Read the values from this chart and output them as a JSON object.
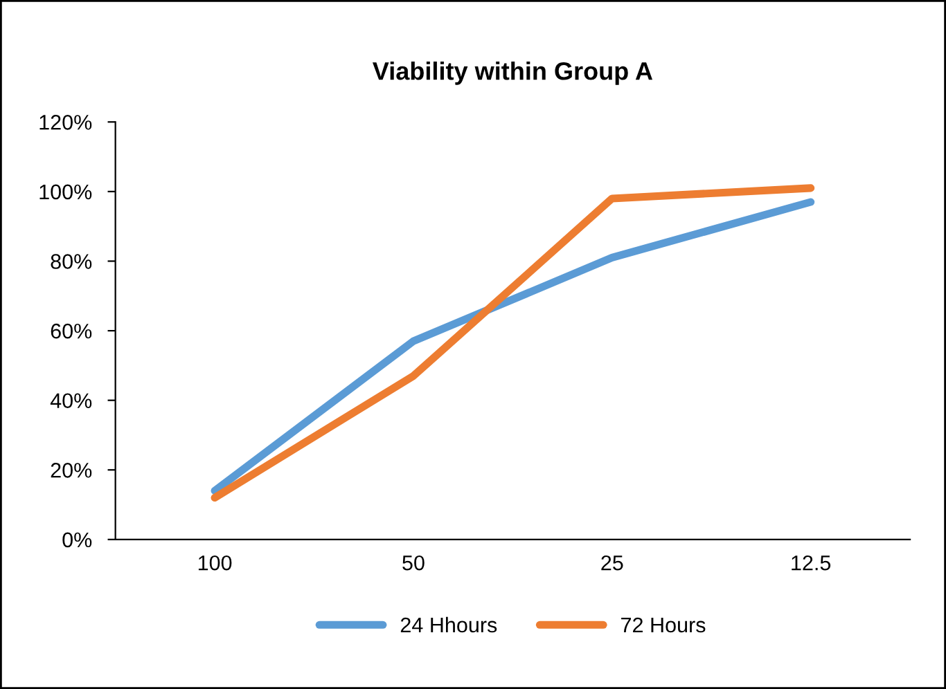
{
  "chart_data": {
    "type": "line",
    "title": "Viability within Group A",
    "categories": [
      "100",
      "50",
      "25",
      "12.5"
    ],
    "series": [
      {
        "name": "24 Hhours",
        "color": "#5b9bd5",
        "values": [
          14,
          57,
          81,
          97
        ]
      },
      {
        "name": "72 Hours",
        "color": "#ed7d31",
        "values": [
          12,
          47,
          98,
          101
        ]
      }
    ],
    "ylim": [
      0,
      120
    ],
    "yticks": [
      {
        "value": 0,
        "label": "0%"
      },
      {
        "value": 20,
        "label": "20%"
      },
      {
        "value": 40,
        "label": "40%"
      },
      {
        "value": 60,
        "label": "60%"
      },
      {
        "value": 80,
        "label": "80%"
      },
      {
        "value": 100,
        "label": "100%"
      },
      {
        "value": 120,
        "label": "120%"
      }
    ],
    "grid": false,
    "legend": "bottom",
    "marker": "none",
    "line_style": "solid"
  }
}
